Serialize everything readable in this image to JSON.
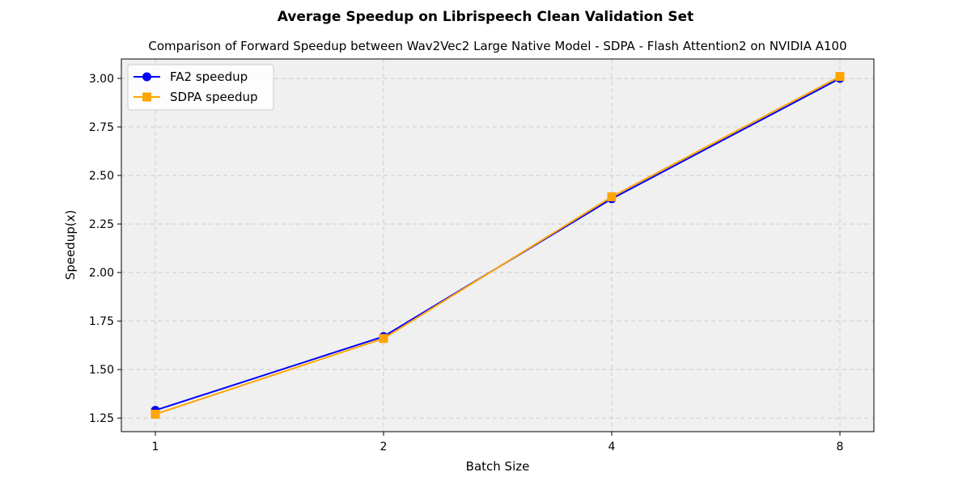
{
  "chart_data": {
    "type": "line",
    "title": "Average Speedup on Librispeech Clean Validation Set",
    "subtitle": "Comparison of Forward Speedup between Wav2Vec2 Large Native Model - SDPA - Flash Attention2 on NVIDIA A100",
    "xlabel": "Batch Size",
    "ylabel": "Speedup(x)",
    "categories": [
      "1",
      "2",
      "4",
      "8"
    ],
    "ylim": [
      1.18,
      3.1
    ],
    "yticks": [
      "1.25",
      "1.50",
      "1.75",
      "2.00",
      "2.25",
      "2.50",
      "2.75",
      "3.00"
    ],
    "grid": true,
    "legend_position": "top-left",
    "series": [
      {
        "name": "FA2 speedup",
        "values": [
          1.29,
          1.67,
          2.38,
          3.0
        ],
        "color": "#0000ff",
        "marker": "circle"
      },
      {
        "name": "SDPA speedup",
        "values": [
          1.27,
          1.66,
          2.39,
          3.01
        ],
        "color": "#ffa500",
        "marker": "square"
      }
    ],
    "plot_background": "#f0f0f0"
  }
}
